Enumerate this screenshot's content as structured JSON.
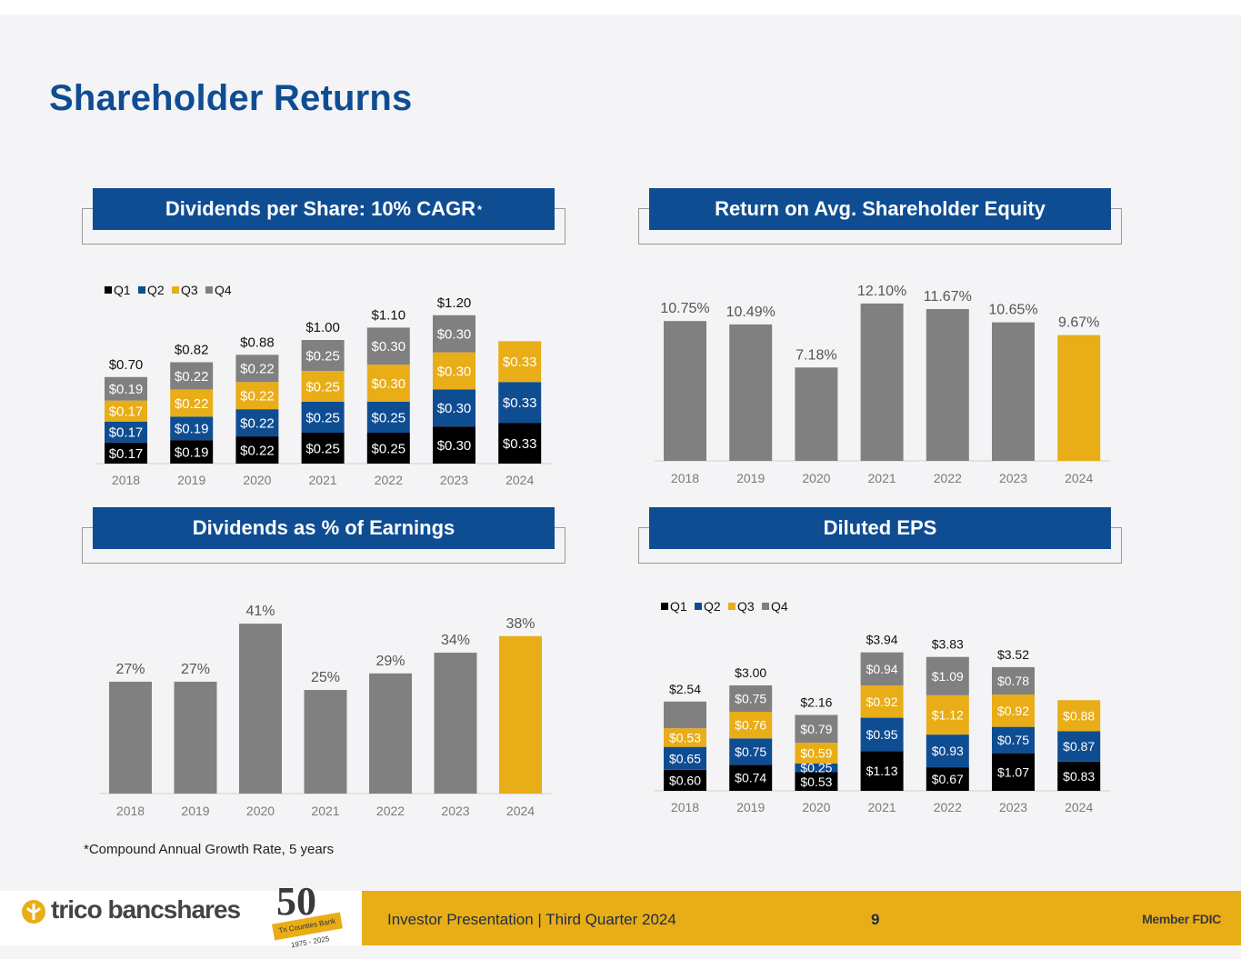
{
  "page": {
    "title": "Shareholder Returns",
    "footnote": "*Compound Annual Growth Rate, 5 years",
    "footer_text": "Investor Presentation  |  Third Quarter 2024",
    "page_number": "9",
    "member_fdic": "Member FDIC",
    "logo_text": "trico bancshares",
    "anniversary_number": "50",
    "anniversary_badge": "Tri Counties Bank 1975 - 2025"
  },
  "colors": {
    "brand_blue": "#0f4d93",
    "gold": "#e9ad17",
    "gray": "#808080",
    "black": "#000000"
  },
  "panels": {
    "dps": {
      "title": "Dividends per Share: 10% CAGR",
      "title_sup": "*"
    },
    "roe": {
      "title": "Return on Avg. Shareholder Equity"
    },
    "payout": {
      "title": "Dividends as % of Earnings"
    },
    "eps": {
      "title": "Diluted EPS"
    }
  },
  "chart_data": [
    {
      "id": "dps",
      "type": "bar",
      "stacked": true,
      "categories": [
        "2018",
        "2019",
        "2020",
        "2021",
        "2022",
        "2023",
        "2024"
      ],
      "legend": [
        "Q1",
        "Q2",
        "Q3",
        "Q4"
      ],
      "legend_position": "top-left",
      "series": [
        {
          "name": "Q1",
          "color": "#000000",
          "values": [
            0.17,
            0.19,
            0.22,
            0.25,
            0.25,
            0.3,
            0.33
          ],
          "labels": [
            "$0.17",
            "$0.19",
            "$0.22",
            "$0.25",
            "$0.25",
            "$0.30",
            "$0.33"
          ]
        },
        {
          "name": "Q2",
          "color": "#0f4d93",
          "values": [
            0.17,
            0.19,
            0.22,
            0.25,
            0.25,
            0.3,
            0.33
          ],
          "labels": [
            "$0.17",
            "$0.19",
            "$0.22",
            "$0.25",
            "$0.25",
            "$0.30",
            "$0.33"
          ]
        },
        {
          "name": "Q3",
          "color": "#e9ad17",
          "values": [
            0.17,
            0.22,
            0.22,
            0.25,
            0.3,
            0.3,
            0.33
          ],
          "labels": [
            "$0.17",
            "$0.22",
            "$0.22",
            "$0.25",
            "$0.30",
            "$0.30",
            "$0.33"
          ]
        },
        {
          "name": "Q4",
          "color": "#808080",
          "values": [
            0.19,
            0.22,
            0.22,
            0.25,
            0.3,
            0.3,
            null
          ],
          "labels": [
            "$0.19",
            "$0.22",
            "$0.22",
            "$0.25",
            "$0.30",
            "$0.30",
            ""
          ]
        }
      ],
      "totals": [
        "$0.70",
        "$0.82",
        "$0.88",
        "$1.00",
        "$1.10",
        "$1.20",
        ""
      ],
      "ylim": [
        0,
        1.25
      ],
      "grid": false
    },
    {
      "id": "roe",
      "type": "bar",
      "categories": [
        "2018",
        "2019",
        "2020",
        "2021",
        "2022",
        "2023",
        "2024"
      ],
      "values": [
        10.75,
        10.49,
        7.18,
        12.1,
        11.67,
        10.65,
        9.67
      ],
      "labels": [
        "10.75%",
        "10.49%",
        "7.18%",
        "12.10%",
        "11.67%",
        "10.65%",
        "9.67%"
      ],
      "colors": [
        "#808080",
        "#808080",
        "#808080",
        "#808080",
        "#808080",
        "#808080",
        "#e9ad17"
      ],
      "ylim": [
        0,
        13
      ],
      "grid": false
    },
    {
      "id": "payout",
      "type": "bar",
      "categories": [
        "2018",
        "2019",
        "2020",
        "2021",
        "2022",
        "2023",
        "2024"
      ],
      "values": [
        27,
        27,
        41,
        25,
        29,
        34,
        38
      ],
      "labels": [
        "27%",
        "27%",
        "41%",
        "25%",
        "29%",
        "34%",
        "38%"
      ],
      "colors": [
        "#808080",
        "#808080",
        "#808080",
        "#808080",
        "#808080",
        "#808080",
        "#e9ad17"
      ],
      "ylim": [
        0,
        43
      ],
      "grid": false
    },
    {
      "id": "eps",
      "type": "bar",
      "stacked": true,
      "categories": [
        "2018",
        "2019",
        "2020",
        "2021",
        "2022",
        "2023",
        "2024"
      ],
      "legend": [
        "Q1",
        "Q2",
        "Q3",
        "Q4"
      ],
      "legend_position": "top-left",
      "series": [
        {
          "name": "Q1",
          "color": "#000000",
          "values": [
            0.6,
            0.74,
            0.53,
            1.13,
            0.67,
            1.07,
            0.83
          ],
          "labels": [
            "$0.60",
            "$0.74",
            "$0.53",
            "$1.13",
            "$0.67",
            "$1.07",
            "$0.83"
          ]
        },
        {
          "name": "Q2",
          "color": "#0f4d93",
          "values": [
            0.65,
            0.75,
            0.25,
            0.95,
            0.93,
            0.75,
            0.87
          ],
          "labels": [
            "$0.65",
            "$0.75",
            "$0.25",
            "$0.95",
            "$0.93",
            "$0.75",
            "$0.87"
          ]
        },
        {
          "name": "Q3",
          "color": "#e9ad17",
          "values": [
            0.53,
            0.76,
            0.59,
            0.92,
            1.12,
            0.92,
            0.88
          ],
          "labels": [
            "$0.53",
            "$0.76",
            "$0.59",
            "$0.92",
            "$1.12",
            "$0.92",
            "$0.88"
          ]
        },
        {
          "name": "Q4",
          "color": "#808080",
          "values": [
            0.76,
            0.75,
            0.79,
            0.94,
            1.09,
            0.78,
            null
          ],
          "labels": [
            "",
            "$0.75",
            "$0.79",
            "$0.94",
            "$1.09",
            "$0.78",
            ""
          ]
        }
      ],
      "totals": [
        "$2.54",
        "$3.00",
        "$2.16",
        "$3.94",
        "$3.83",
        "$3.52",
        ""
      ],
      "ylim": [
        0,
        4.5
      ],
      "grid": false
    }
  ]
}
